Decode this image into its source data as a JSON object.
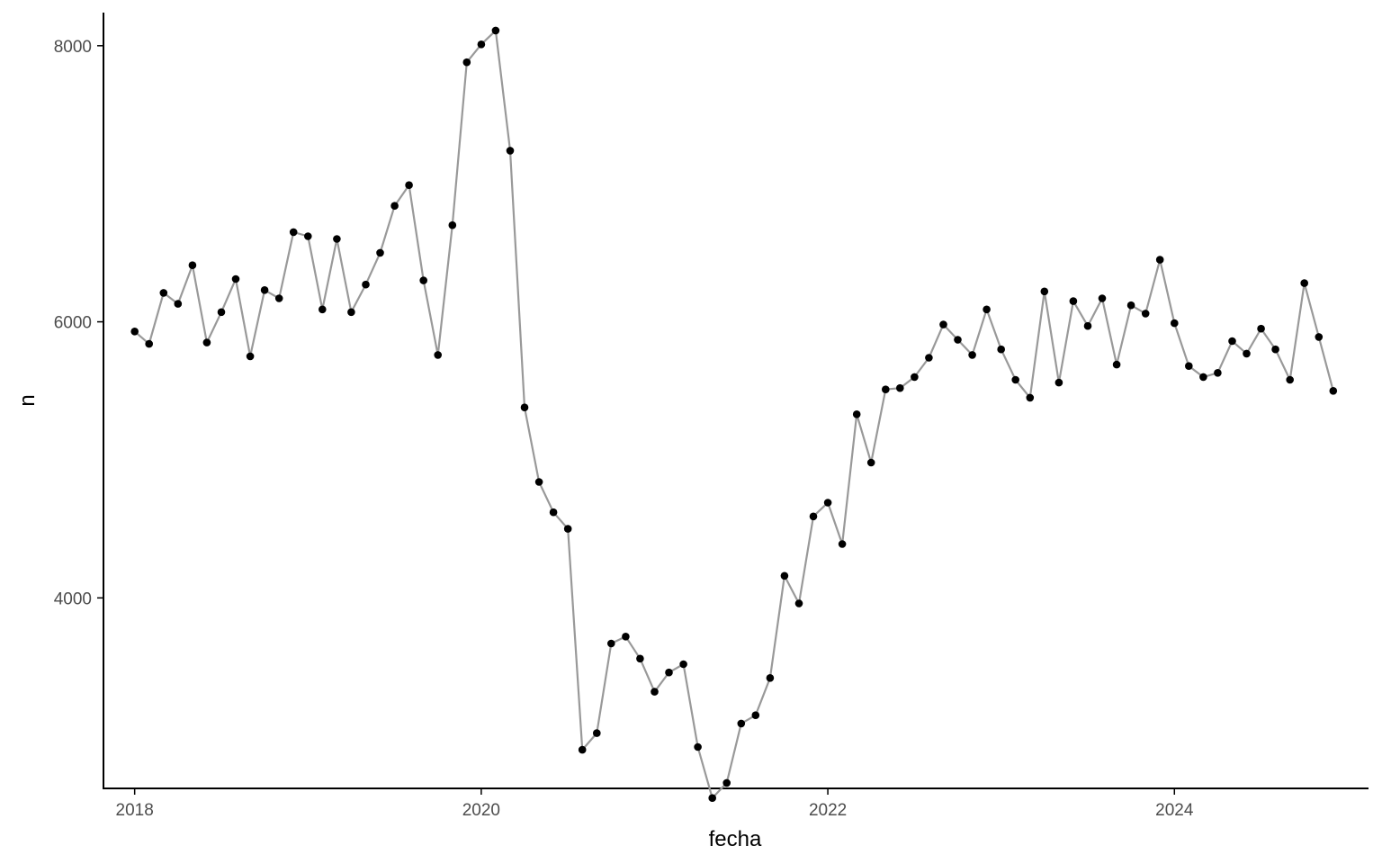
{
  "chart_data": {
    "type": "line",
    "title": "",
    "xlabel": "fecha",
    "ylabel": "n",
    "xlim": [
      2017.82,
      2025.12
    ],
    "ylim": [
      2620,
      8240
    ],
    "x_ticks": [
      {
        "value": 2018,
        "label": "2018"
      },
      {
        "value": 2020,
        "label": "2020"
      },
      {
        "value": 2022,
        "label": "2022"
      },
      {
        "value": 2024,
        "label": "2024"
      }
    ],
    "y_ticks": [
      {
        "value": 4000,
        "label": "4000"
      },
      {
        "value": 6000,
        "label": "6000"
      },
      {
        "value": 8000,
        "label": "8000"
      }
    ],
    "grid": false,
    "start": "2018-01",
    "step": "monthly",
    "series": [
      {
        "name": "n",
        "values": [
          5930,
          5840,
          6210,
          6130,
          6410,
          5850,
          6070,
          6310,
          5750,
          6230,
          6170,
          6650,
          6620,
          6090,
          6600,
          6070,
          6270,
          6500,
          6840,
          6990,
          6300,
          5760,
          6700,
          7880,
          8010,
          8110,
          7240,
          5380,
          4840,
          4620,
          4500,
          2900,
          3020,
          3670,
          3720,
          3560,
          3320,
          3460,
          3520,
          2920,
          2550,
          2660,
          3090,
          3150,
          3420,
          4160,
          3960,
          4590,
          4690,
          4390,
          5330,
          4980,
          5510,
          5520,
          5600,
          5740,
          5980,
          5870,
          5760,
          6090,
          5800,
          5580,
          5450,
          6220,
          5560,
          6150,
          5970,
          6170,
          5690,
          6120,
          6060,
          6450,
          5990,
          5680,
          5600,
          5630,
          5860,
          5770,
          5950,
          5800,
          5580,
          6280,
          5890,
          5500
        ]
      }
    ],
    "colors": {
      "line": "#999999",
      "point": "#000000",
      "axis": "#000000",
      "tick_label": "#4d4d4d"
    }
  }
}
